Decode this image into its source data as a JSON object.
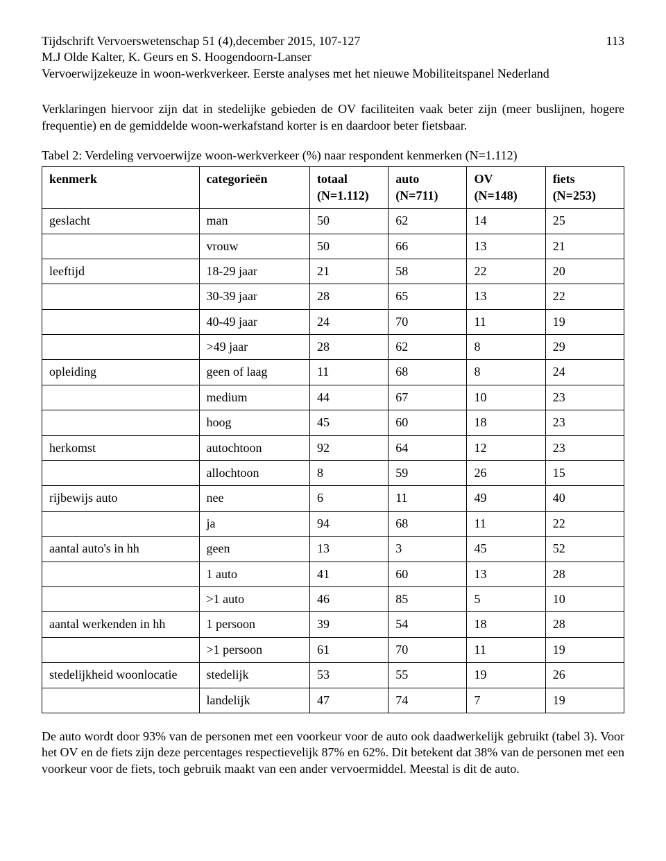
{
  "header": {
    "journal_line": "Tijdschrift Vervoerswetenschap 51 (4),december 2015,  107-127",
    "page_number": "113",
    "authors": "M.J Olde Kalter, K. Geurs en S. Hoogendoorn-Lanser",
    "subtitle": "Vervoerwijzekeuze in woon-werkverkeer. Eerste analyses met het nieuwe Mobiliteitspanel Nederland"
  },
  "intro_para": "Verklaringen hiervoor zijn dat in stedelijke gebieden de OV faciliteiten vaak beter zijn (meer buslijnen, hogere frequentie) en de gemiddelde woon-werkafstand korter is en daardoor beter fietsbaar.",
  "table": {
    "caption": "Tabel 2: Verdeling vervoerwijze woon-werkverkeer (%) naar respondent kenmerken (N=1.112)",
    "headers": {
      "kenmerk": "kenmerk",
      "categorieen": "categorieën",
      "totaal": "totaal (N=1.112)",
      "auto": "auto (N=711)",
      "ov": "OV (N=148)",
      "fiets": "fiets (N=253)"
    },
    "rows": [
      {
        "kenmerk": "geslacht",
        "cat": "man",
        "totaal": "50",
        "auto": "62",
        "ov": "14",
        "fiets": "25"
      },
      {
        "kenmerk": "",
        "cat": "vrouw",
        "totaal": "50",
        "auto": "66",
        "ov": "13",
        "fiets": "21"
      },
      {
        "kenmerk": "leeftijd",
        "cat": "18-29 jaar",
        "totaal": "21",
        "auto": "58",
        "ov": "22",
        "fiets": "20"
      },
      {
        "kenmerk": "",
        "cat": "30-39 jaar",
        "totaal": "28",
        "auto": "65",
        "ov": "13",
        "fiets": "22"
      },
      {
        "kenmerk": "",
        "cat": "40-49 jaar",
        "totaal": "24",
        "auto": "70",
        "ov": "11",
        "fiets": "19"
      },
      {
        "kenmerk": "",
        "cat": ">49 jaar",
        "totaal": "28",
        "auto": "62",
        "ov": "8",
        "fiets": "29"
      },
      {
        "kenmerk": "opleiding",
        "cat": "geen of laag",
        "totaal": "11",
        "auto": "68",
        "ov": "8",
        "fiets": "24"
      },
      {
        "kenmerk": "",
        "cat": "medium",
        "totaal": "44",
        "auto": "67",
        "ov": "10",
        "fiets": "23"
      },
      {
        "kenmerk": "",
        "cat": "hoog",
        "totaal": "45",
        "auto": "60",
        "ov": "18",
        "fiets": "23"
      },
      {
        "kenmerk": "herkomst",
        "cat": "autochtoon",
        "totaal": "92",
        "auto": "64",
        "ov": "12",
        "fiets": "23"
      },
      {
        "kenmerk": "",
        "cat": "allochtoon",
        "totaal": "8",
        "auto": "59",
        "ov": "26",
        "fiets": "15"
      },
      {
        "kenmerk": "rijbewijs auto",
        "cat": "nee",
        "totaal": "6",
        "auto": "11",
        "ov": "49",
        "fiets": "40"
      },
      {
        "kenmerk": "",
        "cat": "ja",
        "totaal": "94",
        "auto": "68",
        "ov": "11",
        "fiets": "22"
      },
      {
        "kenmerk": "aantal auto's in hh",
        "cat": "geen",
        "totaal": "13",
        "auto": "3",
        "ov": "45",
        "fiets": "52"
      },
      {
        "kenmerk": "",
        "cat": "1 auto",
        "totaal": "41",
        "auto": "60",
        "ov": "13",
        "fiets": "28"
      },
      {
        "kenmerk": "",
        "cat": ">1 auto",
        "totaal": "46",
        "auto": "85",
        "ov": "5",
        "fiets": "10"
      },
      {
        "kenmerk": "aantal werkenden in hh",
        "cat": "1 persoon",
        "totaal": "39",
        "auto": "54",
        "ov": "18",
        "fiets": "28"
      },
      {
        "kenmerk": "",
        "cat": ">1 persoon",
        "totaal": "61",
        "auto": "70",
        "ov": "11",
        "fiets": "19"
      },
      {
        "kenmerk": "stedelijkheid woonlocatie",
        "cat": "stedelijk",
        "totaal": "53",
        "auto": "55",
        "ov": "19",
        "fiets": "26"
      },
      {
        "kenmerk": "",
        "cat": "landelijk",
        "totaal": "47",
        "auto": "74",
        "ov": "7",
        "fiets": "19"
      }
    ]
  },
  "bottom_para": "De auto wordt door 93% van de personen met een voorkeur voor de auto ook daadwerkelijk gebruikt (tabel 3). Voor het OV en de fiets zijn deze percentages respectievelijk 87% en 62%. Dit betekent dat 38% van de personen met een voorkeur voor de fiets, toch gebruik maakt van een ander vervoermiddel. Meestal is dit de auto."
}
